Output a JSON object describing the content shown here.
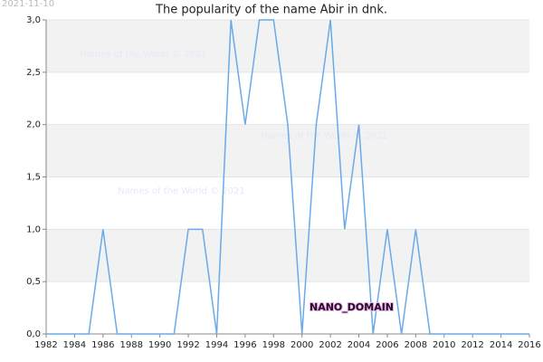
{
  "chart_data": {
    "type": "line",
    "title": "The popularity of the name Abir in dnk.",
    "date": "2021-11-10",
    "watermarks": [
      "Names of the World © 2021",
      "Names of the World © 2021",
      "Names of the World © 2021"
    ],
    "stamp": "NANO_DOMAIN",
    "x": [
      1982,
      1983,
      1984,
      1985,
      1986,
      1987,
      1988,
      1989,
      1990,
      1991,
      1992,
      1993,
      1994,
      1995,
      1996,
      1997,
      1998,
      1999,
      2000,
      2001,
      2002,
      2003,
      2004,
      2005,
      2006,
      2007,
      2008,
      2009,
      2010,
      2011,
      2012,
      2013,
      2014,
      2015,
      2016
    ],
    "series": [
      {
        "color": "#6aaaea",
        "values": [
          0,
          0,
          0,
          0,
          1,
          0,
          0,
          0,
          0,
          0,
          1,
          1,
          0,
          3,
          2,
          3,
          3,
          2,
          0,
          2,
          3,
          1,
          2,
          0,
          1,
          0,
          1,
          0,
          0,
          0,
          0,
          0,
          0,
          0,
          0
        ]
      }
    ],
    "xlim": [
      1982,
      2016
    ],
    "xticks": [
      1982,
      1984,
      1986,
      1988,
      1990,
      1992,
      1994,
      1996,
      1998,
      2000,
      2002,
      2004,
      2006,
      2008,
      2010,
      2012,
      2014,
      2016
    ],
    "ylim": [
      0,
      3
    ],
    "yticks": [
      {
        "value": 0,
        "label": "0,0"
      },
      {
        "value": 0.5,
        "label": "0,5"
      },
      {
        "value": 1,
        "label": "1,0"
      },
      {
        "value": 1.5,
        "label": "1,5"
      },
      {
        "value": 2,
        "label": "2,0"
      },
      {
        "value": 2.5,
        "label": "2,5"
      },
      {
        "value": 3,
        "label": "3,0"
      }
    ],
    "grid": true
  }
}
